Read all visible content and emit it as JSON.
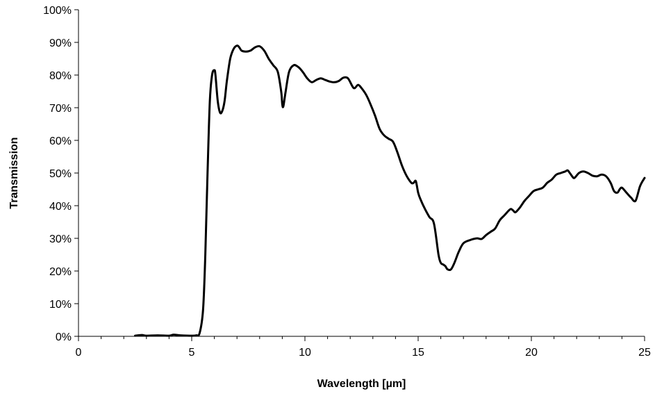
{
  "chart_data": {
    "type": "line",
    "title": "",
    "xlabel": "Wavelength [µm]",
    "ylabel": "Transmission",
    "xlim": [
      0,
      25
    ],
    "ylim": [
      0,
      1
    ],
    "x_ticks": [
      {
        "value": 0,
        "label": "0"
      },
      {
        "value": 5,
        "label": "5"
      },
      {
        "value": 10,
        "label": "10"
      },
      {
        "value": 15,
        "label": "15"
      },
      {
        "value": 20,
        "label": "20"
      },
      {
        "value": 25,
        "label": "25"
      }
    ],
    "x_minor_step": 1,
    "y_ticks": [
      {
        "value": 0.0,
        "label": "0%"
      },
      {
        "value": 0.1,
        "label": "10%"
      },
      {
        "value": 0.2,
        "label": "20%"
      },
      {
        "value": 0.3,
        "label": "30%"
      },
      {
        "value": 0.4,
        "label": "40%"
      },
      {
        "value": 0.5,
        "label": "50%"
      },
      {
        "value": 0.6,
        "label": "60%"
      },
      {
        "value": 0.7,
        "label": "70%"
      },
      {
        "value": 0.8,
        "label": "80%"
      },
      {
        "value": 0.9,
        "label": "90%"
      },
      {
        "value": 1.0,
        "label": "100%"
      }
    ],
    "grid": false,
    "legend": "none",
    "line_color": "#000000",
    "series": [
      {
        "x": [
          2.5,
          2.8,
          3.0,
          3.5,
          4.0,
          4.2,
          4.5,
          5.0,
          5.2,
          5.35,
          5.5,
          5.6,
          5.7,
          5.8,
          5.9,
          6.0,
          6.05,
          6.15,
          6.25,
          6.35,
          6.45,
          6.55,
          6.7,
          6.85,
          7.0,
          7.1,
          7.2,
          7.4,
          7.6,
          7.8,
          8.0,
          8.2,
          8.4,
          8.6,
          8.8,
          8.95,
          9.0,
          9.05,
          9.15,
          9.3,
          9.5,
          9.7,
          9.9,
          10.1,
          10.3,
          10.5,
          10.7,
          10.9,
          11.1,
          11.3,
          11.5,
          11.7,
          11.9,
          12.1,
          12.2,
          12.35,
          12.5,
          12.7,
          12.9,
          13.1,
          13.3,
          13.5,
          13.7,
          13.9,
          14.1,
          14.3,
          14.5,
          14.7,
          14.8,
          14.9,
          15.0,
          15.1,
          15.3,
          15.5,
          15.7,
          15.9,
          16.0,
          16.1,
          16.2,
          16.3,
          16.45,
          16.6,
          16.8,
          17.0,
          17.3,
          17.6,
          17.8,
          18.0,
          18.2,
          18.4,
          18.6,
          18.8,
          19.0,
          19.1,
          19.2,
          19.3,
          19.5,
          19.7,
          19.9,
          20.1,
          20.3,
          20.5,
          20.7,
          20.9,
          21.1,
          21.3,
          21.5,
          21.6,
          21.7,
          21.8,
          21.9,
          22.1,
          22.3,
          22.5,
          22.7,
          22.9,
          23.1,
          23.3,
          23.5,
          23.65,
          23.8,
          23.9,
          24.0,
          24.2,
          24.4,
          24.6,
          24.8,
          25.0
        ],
        "y": [
          0.002,
          0.004,
          0.002,
          0.003,
          0.002,
          0.005,
          0.003,
          0.002,
          0.003,
          0.01,
          0.08,
          0.25,
          0.5,
          0.72,
          0.8,
          0.815,
          0.8,
          0.72,
          0.685,
          0.69,
          0.72,
          0.78,
          0.85,
          0.88,
          0.89,
          0.885,
          0.875,
          0.872,
          0.875,
          0.885,
          0.888,
          0.875,
          0.85,
          0.83,
          0.81,
          0.75,
          0.71,
          0.705,
          0.75,
          0.81,
          0.83,
          0.825,
          0.81,
          0.79,
          0.778,
          0.785,
          0.79,
          0.785,
          0.78,
          0.778,
          0.782,
          0.792,
          0.79,
          0.765,
          0.76,
          0.77,
          0.76,
          0.74,
          0.71,
          0.675,
          0.635,
          0.615,
          0.605,
          0.595,
          0.56,
          0.52,
          0.49,
          0.47,
          0.47,
          0.475,
          0.44,
          0.42,
          0.39,
          0.365,
          0.345,
          0.25,
          0.225,
          0.22,
          0.215,
          0.205,
          0.205,
          0.225,
          0.26,
          0.285,
          0.295,
          0.3,
          0.298,
          0.31,
          0.32,
          0.33,
          0.355,
          0.37,
          0.385,
          0.39,
          0.385,
          0.38,
          0.395,
          0.415,
          0.43,
          0.445,
          0.45,
          0.455,
          0.47,
          0.48,
          0.495,
          0.5,
          0.505,
          0.508,
          0.5,
          0.49,
          0.485,
          0.5,
          0.505,
          0.5,
          0.492,
          0.49,
          0.495,
          0.49,
          0.47,
          0.445,
          0.44,
          0.45,
          0.455,
          0.44,
          0.425,
          0.415,
          0.46,
          0.485
        ]
      }
    ]
  }
}
